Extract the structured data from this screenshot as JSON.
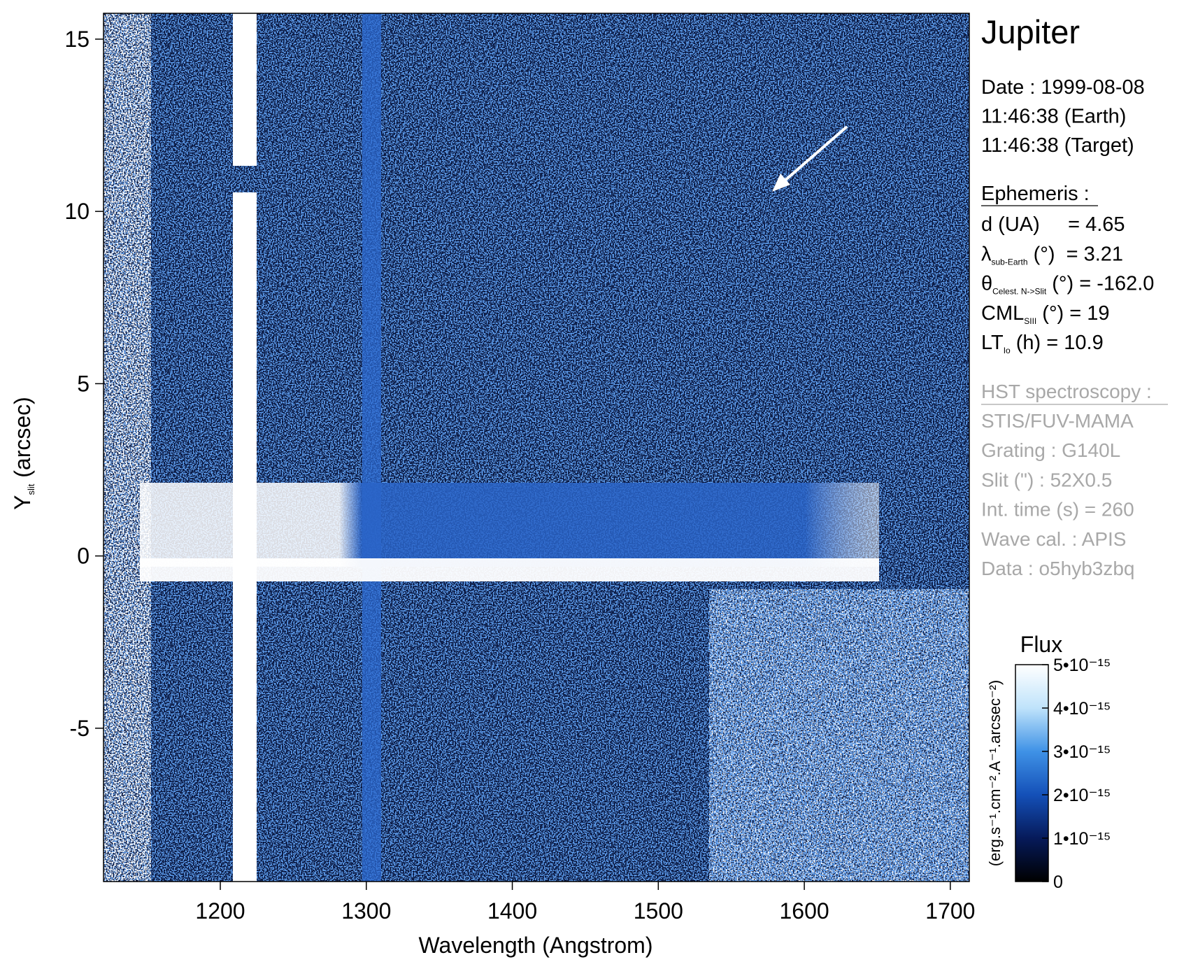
{
  "chart_data": {
    "type": "heatmap",
    "xlabel": "Wavelength (Angstrom)",
    "ylabel": {
      "main": "Y",
      "sub": "slit",
      "rest": " (arcsec)"
    },
    "xlim": [
      1120,
      1713
    ],
    "ylim": [
      -9.45,
      15.75
    ],
    "xticks": [
      1200,
      1300,
      1400,
      1500,
      1600,
      1700
    ],
    "yticks": [
      -5,
      0,
      5,
      10,
      15
    ],
    "colorbar": {
      "title": "Flux",
      "label": "(erg.s⁻¹.cm⁻².A⁻¹.arcsec⁻²)",
      "lim": [
        0,
        5e-15
      ],
      "ticks": [
        0,
        {
          "value": 1e-15,
          "label": "1•10⁻¹⁵"
        },
        {
          "value": 2e-15,
          "label": "2•10⁻¹⁵"
        },
        {
          "value": 3e-15,
          "label": "3•10⁻¹⁵"
        },
        {
          "value": 4e-15,
          "label": "4•10⁻¹⁵"
        },
        {
          "value": 5e-15,
          "label": "5•10⁻¹⁵"
        }
      ],
      "colors": [
        "#000000",
        "#061a5a",
        "#1450b8",
        "#3f92e6",
        "#bfe3fb",
        "#ffffff"
      ]
    }
  },
  "info": {
    "title": "Jupiter",
    "date_lines": [
      "Date : 1999-08-08",
      "11:46:38 (Earth)",
      "11:46:38 (Target)"
    ],
    "ephemeris": {
      "heading": "Ephemeris :",
      "rows": [
        {
          "symbol": "d (UA)     = 4.65"
        },
        {
          "symbol": "λ",
          "sub": "sub-Earth",
          "rest": " (°)  = 3.21"
        },
        {
          "symbol": "θ",
          "sub": "Celest. N->Slit",
          "rest": " (°) = -162.0"
        },
        {
          "symbol": "CML",
          "sub": "SIII",
          "rest": " (°) = 19"
        },
        {
          "symbol": "LT",
          "sub": "Io",
          "rest": " (h) = 10.9"
        }
      ]
    },
    "instrument": {
      "heading": "HST spectroscopy :",
      "lines": [
        "STIS/FUV-MAMA",
        "Grating : G140L",
        "Slit (\") : 52X0.5",
        "Int. time (s) = 260",
        "Wave cal. : APIS",
        "Data : o5hyb3zbq"
      ]
    }
  }
}
